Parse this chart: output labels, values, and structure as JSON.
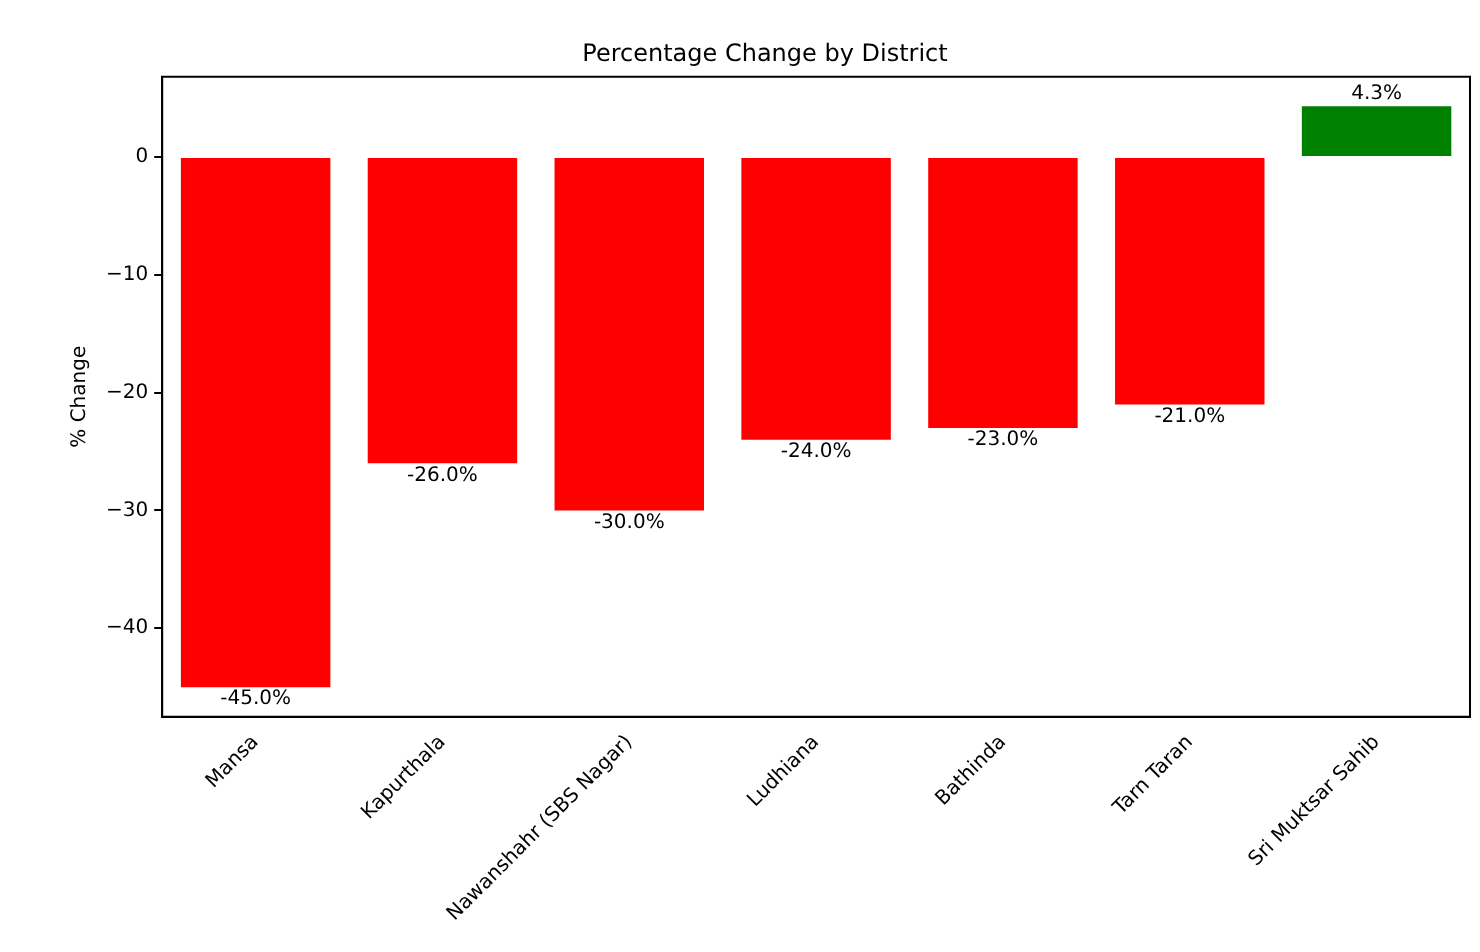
{
  "chart_data": {
    "type": "bar",
    "title": "Percentage Change by District",
    "ylabel": "% Change",
    "categories": [
      "Mansa",
      "Kapurthala",
      "Nawanshahr (SBS Nagar)",
      "Ludhiana",
      "Bathinda",
      "Tarn Taran",
      "Sri Muktsar Sahib"
    ],
    "values": [
      -45.0,
      -26.0,
      -30.0,
      -24.0,
      -23.0,
      -21.0,
      4.3
    ],
    "colors": [
      "#ff0000",
      "#ff0000",
      "#ff0000",
      "#ff0000",
      "#ff0000",
      "#ff0000",
      "#008000"
    ],
    "value_labels": [
      "-45.0%",
      "-26.0%",
      "-30.0%",
      "-24.0%",
      "-23.0%",
      "-21.0%",
      "4.3%"
    ],
    "ylim": [
      -47.5,
      6.8
    ],
    "yticks": [
      -40,
      -30,
      -20,
      -10,
      0
    ],
    "grid": false,
    "legend": false
  }
}
